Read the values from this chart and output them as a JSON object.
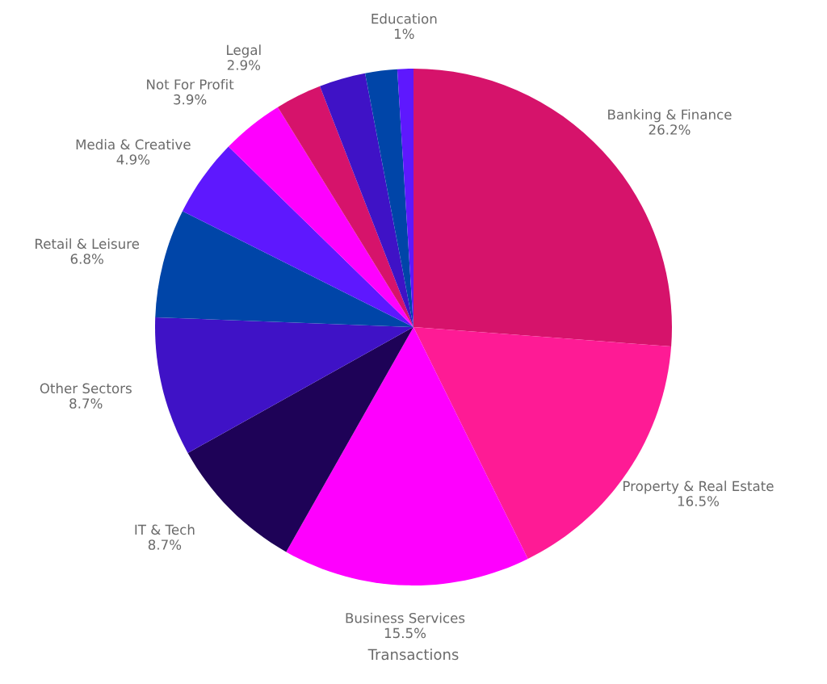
{
  "chart_data": {
    "type": "pie",
    "title": "Transactions",
    "categories": [
      "Banking & Finance",
      "Property & Real Estate",
      "Business Services",
      "IT & Tech",
      "Other Sectors",
      "Retail & Leisure",
      "Media & Creative",
      "Not For Profit",
      "Legal",
      null,
      null,
      "Education"
    ],
    "values": [
      26.2,
      16.5,
      15.5,
      8.7,
      8.7,
      6.8,
      4.9,
      3.9,
      2.9,
      2.9,
      2.0,
      1
    ],
    "value_labels": [
      "26.2%",
      "16.5%",
      "15.5%",
      "8.7%",
      "8.7%",
      "6.8%",
      "4.9%",
      "3.9%",
      "2.9%",
      null,
      null,
      "1%"
    ],
    "colors": [
      "#d6136b",
      "#fe1b95",
      "#fe00fe",
      "#1e0257",
      "#3f12c6",
      "#0045a8",
      "#5e18fe",
      "#fe00fe",
      "#d6136b",
      "#3f12c6",
      "#0045a8",
      "#5e18fe"
    ]
  }
}
